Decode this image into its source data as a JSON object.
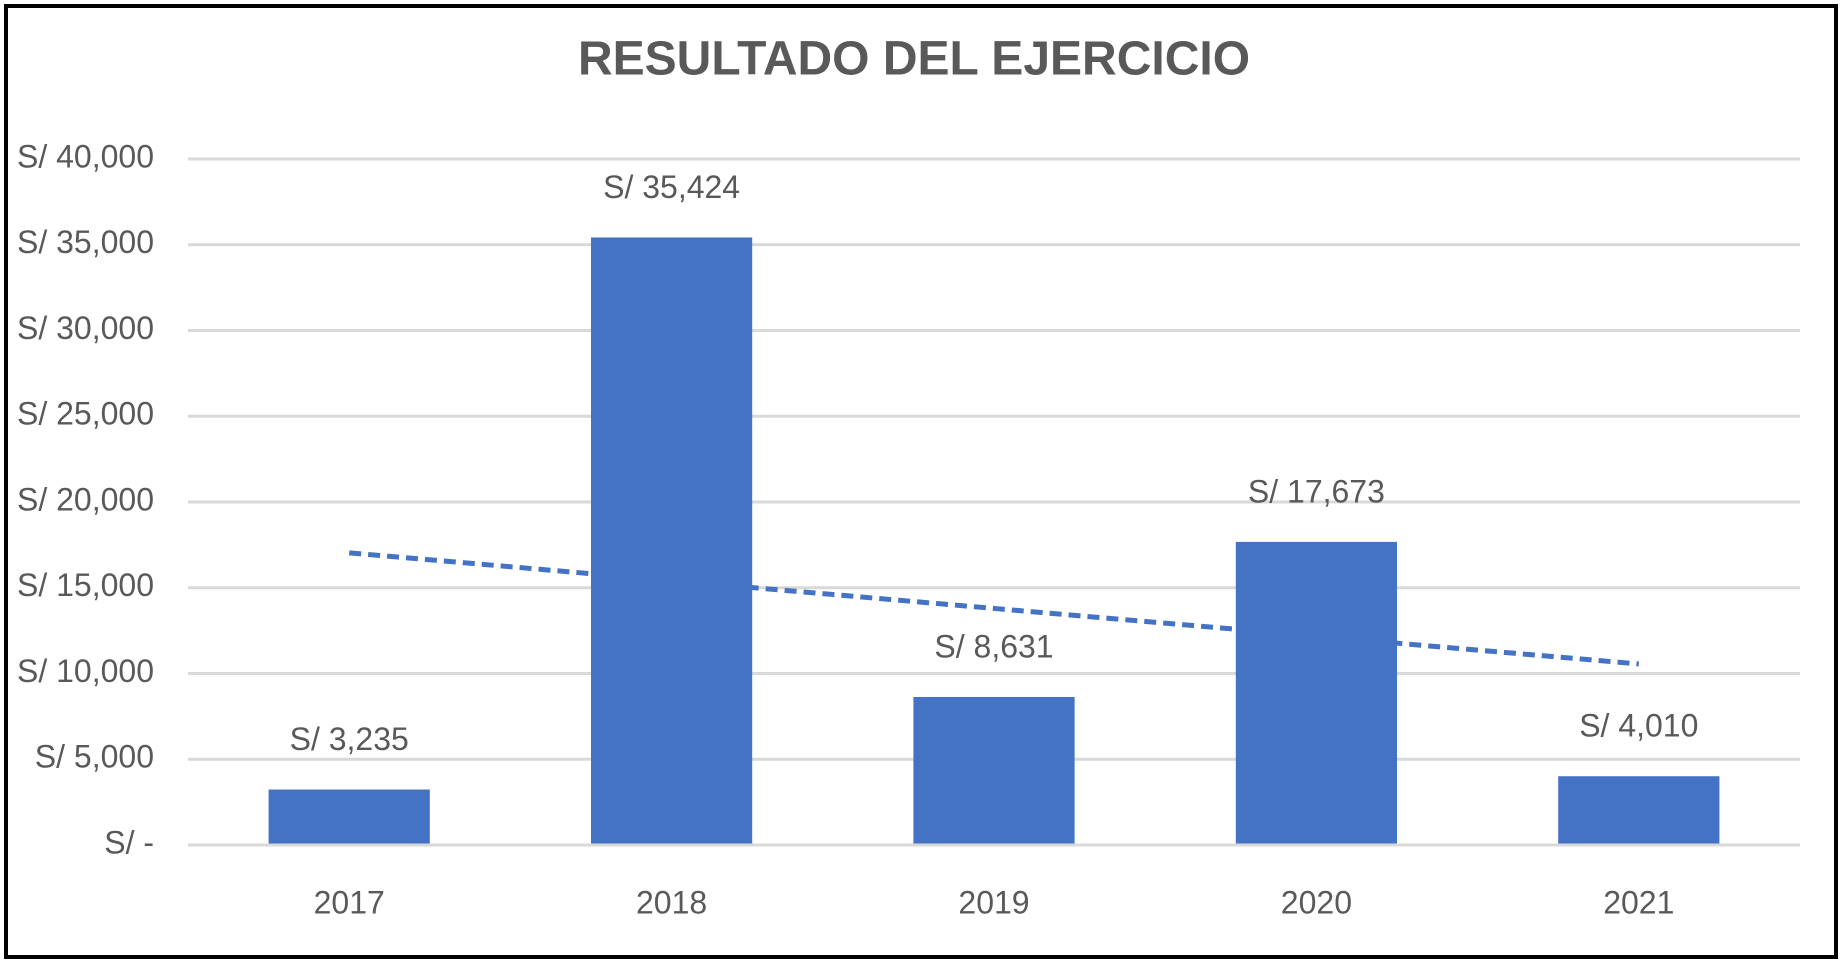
{
  "chart_data": {
    "type": "bar",
    "title": "RESULTADO DEL EJERCICIO",
    "categories": [
      "2017",
      "2018",
      "2019",
      "2020",
      "2021"
    ],
    "values": [
      3235,
      35424,
      8631,
      17673,
      4010
    ],
    "value_labels": [
      "S/ 3,235",
      "S/ 35,424",
      "S/ 8,631",
      "S/ 17,673",
      "S/ 4,010"
    ],
    "color": "#4472c4",
    "ylim": [
      0,
      40000
    ],
    "yticks": [
      {
        "value": 0,
        "label": "S/ -"
      },
      {
        "value": 5000,
        "label": "S/ 5,000"
      },
      {
        "value": 10000,
        "label": "S/ 10,000"
      },
      {
        "value": 15000,
        "label": "S/ 15,000"
      },
      {
        "value": 20000,
        "label": "S/ 20,000"
      },
      {
        "value": 25000,
        "label": "S/ 25,000"
      },
      {
        "value": 30000,
        "label": "S/ 30,000"
      },
      {
        "value": 35000,
        "label": "S/ 35,000"
      },
      {
        "value": 40000,
        "label": "S/ 40,000"
      }
    ],
    "grid": true,
    "trendline": "linear"
  }
}
